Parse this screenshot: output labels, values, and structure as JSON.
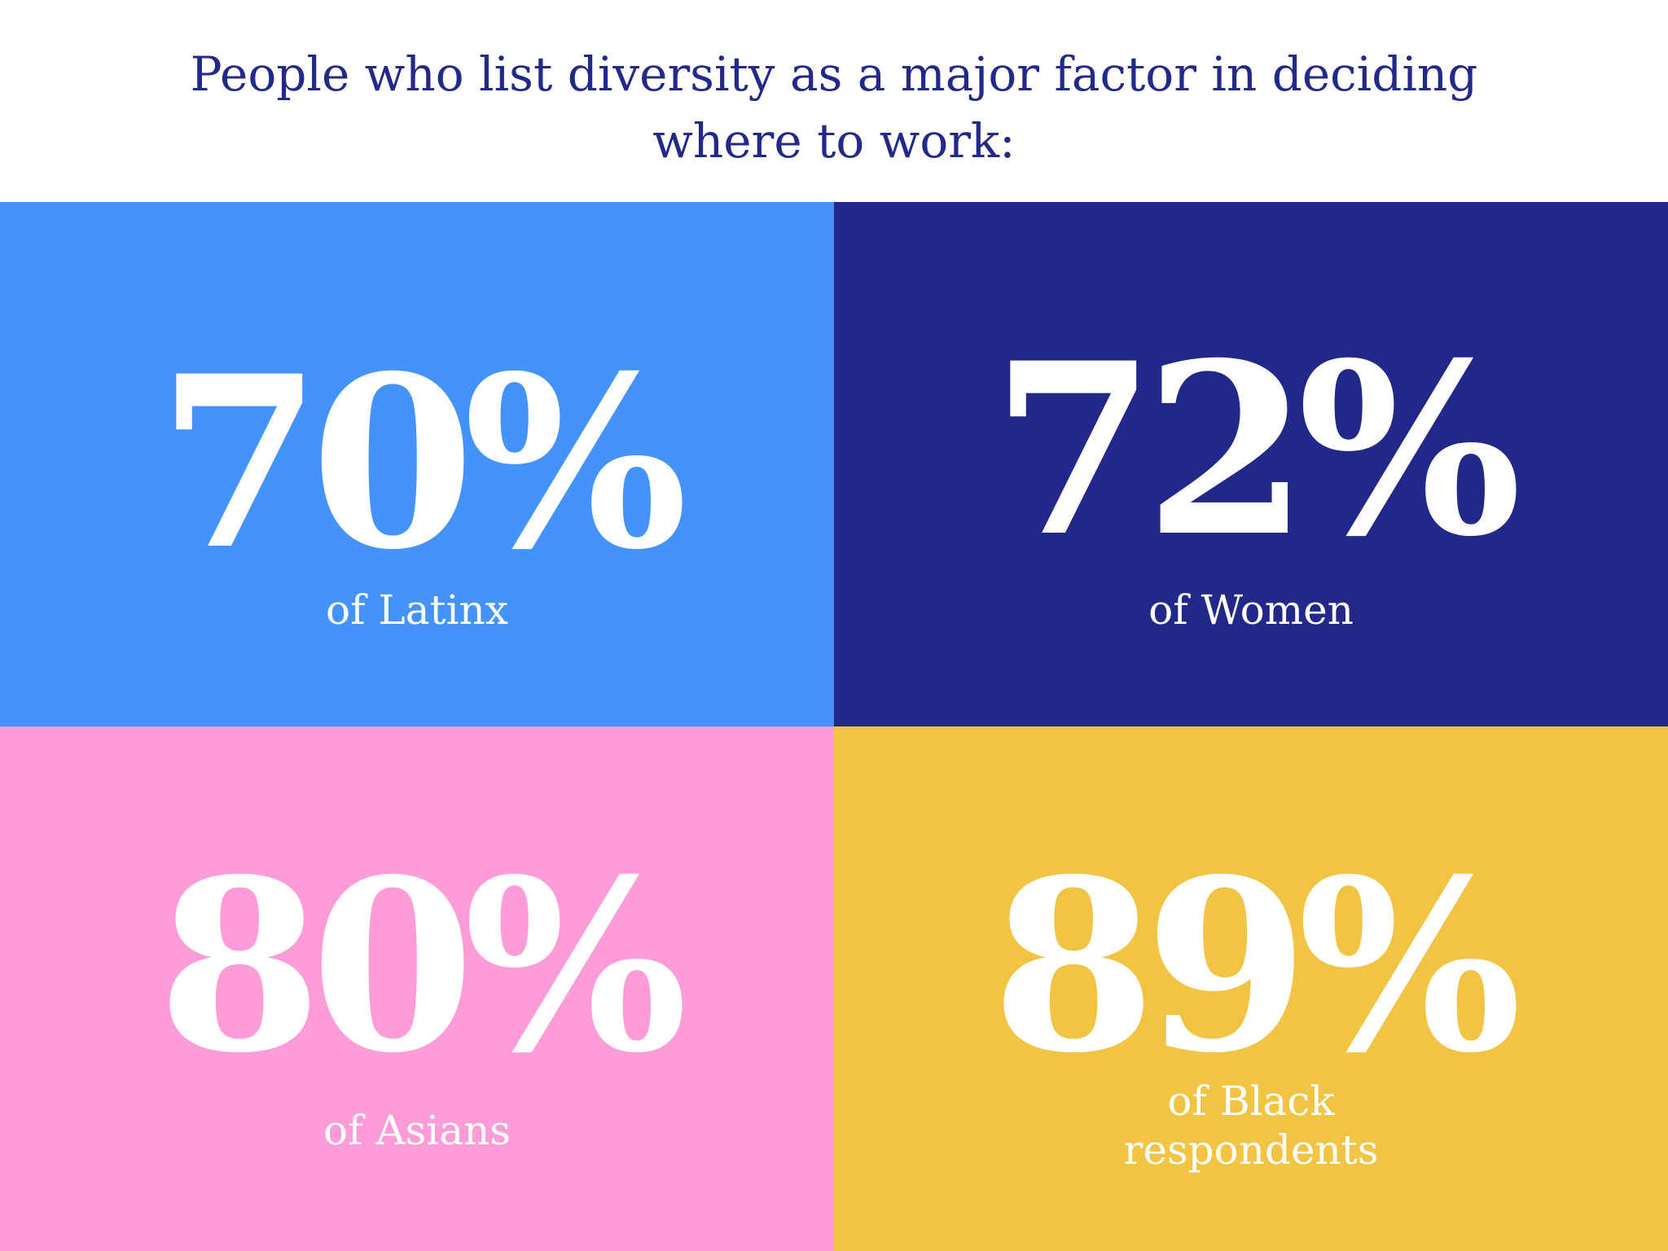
{
  "title": {
    "line1": "People who list diversity as a major factor in deciding",
    "line2": "where to work:"
  },
  "stats": [
    {
      "value": "70%",
      "label_line1": "of Latinx",
      "label_line2": "",
      "color": "#4493fd"
    },
    {
      "value": "72%",
      "label_line1": "of Women",
      "label_line2": "",
      "color": "#22288a"
    },
    {
      "value": "80%",
      "label_line1": "of Asians",
      "label_line2": "",
      "color": "#fd9cd6"
    },
    {
      "value": "89%",
      "label_line1": "of Black",
      "label_line2": "respondents",
      "color": "#f2c444"
    }
  ],
  "colors": {
    "title_text": "#23298a",
    "stat_text": "#ffffff",
    "background": "#ffffff"
  }
}
